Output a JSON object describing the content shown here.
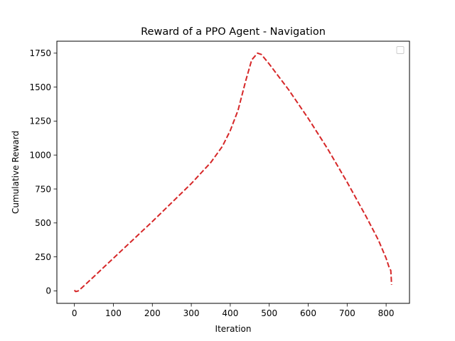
{
  "chart_data": {
    "type": "line",
    "title": "Reward of a PPO Agent - Navigation",
    "xlabel": "Iteration",
    "ylabel": "Cumulative Reward",
    "xlim": [
      -45,
      860
    ],
    "ylim": [
      -92,
      1838
    ],
    "xticks": [
      0,
      100,
      200,
      300,
      400,
      500,
      600,
      700,
      800
    ],
    "yticks": [
      0,
      250,
      500,
      750,
      1000,
      1250,
      1500,
      1750
    ],
    "grid": false,
    "legend": {
      "placement": "top-right",
      "entries": []
    },
    "series": [
      {
        "color": "#d62728",
        "style": "dashed",
        "x": [
          0,
          3,
          7,
          10,
          20,
          50,
          100,
          150,
          200,
          250,
          300,
          350,
          380,
          400,
          420,
          440,
          455,
          470,
          480,
          500,
          550,
          600,
          650,
          700,
          750,
          780,
          800,
          808,
          812,
          813,
          814
        ],
        "y": [
          5,
          -5,
          -3,
          0,
          25,
          105,
          240,
          375,
          510,
          650,
          790,
          945,
          1065,
          1180,
          1330,
          1550,
          1700,
          1750,
          1740,
          1670,
          1480,
          1270,
          1045,
          800,
          540,
          375,
          240,
          170,
          150,
          100,
          45
        ]
      }
    ]
  }
}
